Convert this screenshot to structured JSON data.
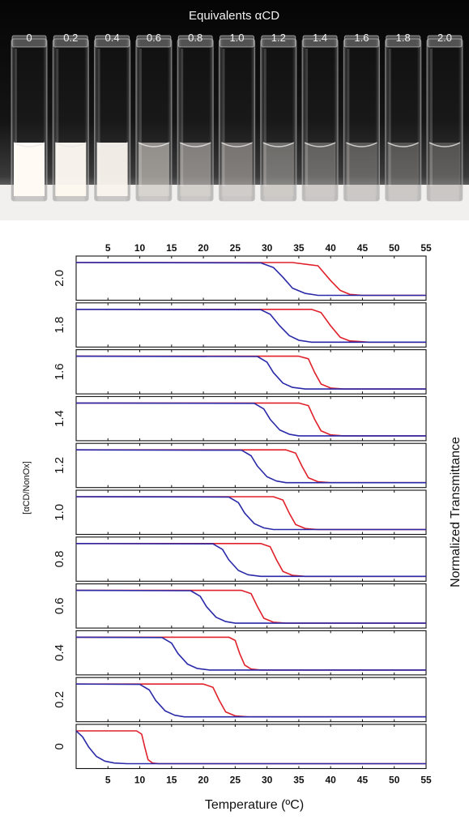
{
  "photo": {
    "title": "Equivalents αCD",
    "vial_labels": [
      "0",
      "0.2",
      "0.4",
      "0.6",
      "0.8",
      "1.0",
      "1.2",
      "1.4",
      "1.6",
      "1.8",
      "2.0"
    ],
    "turbidity": [
      1.0,
      0.96,
      0.93,
      0.45,
      0.35,
      0.28,
      0.22,
      0.15,
      0.1,
      0.07,
      0.05
    ]
  },
  "chart_data": {
    "type": "line",
    "xlabel": "Temperature (ºC)",
    "ylabel_left": "[αCD/NonOx]",
    "ylabel_right": "Normalized Transmittance",
    "xlim": [
      0,
      55
    ],
    "xticks": [
      5,
      10,
      15,
      20,
      25,
      30,
      35,
      40,
      45,
      50,
      55
    ],
    "panel_order": [
      "2.0",
      "1.8",
      "1.6",
      "1.4",
      "1.2",
      "1.0",
      "0.8",
      "0.6",
      "0.4",
      "0.2",
      "0"
    ],
    "series_colors": {
      "red": "#e0202a",
      "blue": "#2a2aa8"
    },
    "panels": [
      {
        "label": "2.0",
        "red": [
          [
            0,
            1
          ],
          [
            34,
            1
          ],
          [
            38,
            0.9
          ],
          [
            40,
            0.45
          ],
          [
            41.5,
            0.15
          ],
          [
            43,
            0.03
          ],
          [
            45,
            0
          ],
          [
            55,
            0
          ]
        ],
        "blue": [
          [
            0,
            1
          ],
          [
            29,
            0.99
          ],
          [
            31,
            0.85
          ],
          [
            32.5,
            0.55
          ],
          [
            34,
            0.22
          ],
          [
            36,
            0.06
          ],
          [
            38,
            0
          ],
          [
            55,
            0
          ]
        ]
      },
      {
        "label": "1.8",
        "red": [
          [
            0,
            1
          ],
          [
            37,
            1
          ],
          [
            38.5,
            0.9
          ],
          [
            40,
            0.5
          ],
          [
            41.5,
            0.15
          ],
          [
            43,
            0.04
          ],
          [
            46,
            0
          ],
          [
            55,
            0
          ]
        ],
        "blue": [
          [
            0,
            1
          ],
          [
            29,
            0.99
          ],
          [
            30.5,
            0.85
          ],
          [
            32,
            0.5
          ],
          [
            33.5,
            0.2
          ],
          [
            35,
            0.06
          ],
          [
            37,
            0
          ],
          [
            55,
            0
          ]
        ]
      },
      {
        "label": "1.6",
        "red": [
          [
            0,
            1
          ],
          [
            35,
            1
          ],
          [
            36.5,
            0.92
          ],
          [
            37.5,
            0.5
          ],
          [
            38.5,
            0.15
          ],
          [
            40,
            0.03
          ],
          [
            42,
            0
          ],
          [
            55,
            0
          ]
        ],
        "blue": [
          [
            0,
            1
          ],
          [
            28.5,
            0.99
          ],
          [
            30,
            0.82
          ],
          [
            31,
            0.5
          ],
          [
            32.5,
            0.18
          ],
          [
            34,
            0.05
          ],
          [
            36,
            0
          ],
          [
            55,
            0
          ]
        ]
      },
      {
        "label": "1.4",
        "red": [
          [
            0,
            1
          ],
          [
            35,
            1
          ],
          [
            36.5,
            0.92
          ],
          [
            37.5,
            0.5
          ],
          [
            38.5,
            0.15
          ],
          [
            40,
            0.03
          ],
          [
            42,
            0
          ],
          [
            55,
            0
          ]
        ],
        "blue": [
          [
            0,
            1
          ],
          [
            28,
            0.99
          ],
          [
            29.5,
            0.82
          ],
          [
            30.5,
            0.5
          ],
          [
            32,
            0.18
          ],
          [
            33.5,
            0.05
          ],
          [
            35,
            0
          ],
          [
            55,
            0
          ]
        ]
      },
      {
        "label": "1.2",
        "red": [
          [
            0,
            1
          ],
          [
            33,
            1
          ],
          [
            34.5,
            0.9
          ],
          [
            35.5,
            0.5
          ],
          [
            36.5,
            0.15
          ],
          [
            38,
            0.03
          ],
          [
            40,
            0
          ],
          [
            55,
            0
          ]
        ],
        "blue": [
          [
            0,
            1
          ],
          [
            26,
            0.99
          ],
          [
            27.5,
            0.82
          ],
          [
            28.5,
            0.5
          ],
          [
            30,
            0.18
          ],
          [
            31.5,
            0.05
          ],
          [
            33,
            0
          ],
          [
            55,
            0
          ]
        ]
      },
      {
        "label": "1.0",
        "red": [
          [
            0,
            1
          ],
          [
            31,
            1
          ],
          [
            32.5,
            0.9
          ],
          [
            33.5,
            0.5
          ],
          [
            34.5,
            0.15
          ],
          [
            36,
            0.03
          ],
          [
            38,
            0
          ],
          [
            55,
            0
          ]
        ],
        "blue": [
          [
            0,
            1
          ],
          [
            24,
            0.99
          ],
          [
            25.5,
            0.82
          ],
          [
            26.5,
            0.5
          ],
          [
            28,
            0.18
          ],
          [
            29.5,
            0.05
          ],
          [
            31,
            0
          ],
          [
            55,
            0
          ]
        ]
      },
      {
        "label": "0.8",
        "red": [
          [
            0,
            1
          ],
          [
            29,
            1
          ],
          [
            30.5,
            0.9
          ],
          [
            31.5,
            0.5
          ],
          [
            32.5,
            0.15
          ],
          [
            34,
            0.03
          ],
          [
            36,
            0
          ],
          [
            55,
            0
          ]
        ],
        "blue": [
          [
            0,
            1
          ],
          [
            21.5,
            0.99
          ],
          [
            23,
            0.82
          ],
          [
            24,
            0.5
          ],
          [
            25.5,
            0.18
          ],
          [
            27,
            0.05
          ],
          [
            29,
            0
          ],
          [
            55,
            0
          ]
        ]
      },
      {
        "label": "0.6",
        "red": [
          [
            0,
            1
          ],
          [
            26,
            1
          ],
          [
            27.5,
            0.9
          ],
          [
            28.5,
            0.5
          ],
          [
            29.5,
            0.15
          ],
          [
            31,
            0.03
          ],
          [
            33,
            0
          ],
          [
            55,
            0
          ]
        ],
        "blue": [
          [
            0,
            1
          ],
          [
            18,
            0.99
          ],
          [
            19.5,
            0.82
          ],
          [
            20.5,
            0.5
          ],
          [
            22,
            0.18
          ],
          [
            23.5,
            0.05
          ],
          [
            25,
            0
          ],
          [
            55,
            0
          ]
        ]
      },
      {
        "label": "0.4",
        "red": [
          [
            0,
            1
          ],
          [
            24,
            1
          ],
          [
            25,
            0.9
          ],
          [
            25.7,
            0.5
          ],
          [
            26.5,
            0.15
          ],
          [
            27.5,
            0.03
          ],
          [
            29,
            0
          ],
          [
            55,
            0
          ]
        ],
        "blue": [
          [
            0,
            1
          ],
          [
            13.5,
            0.99
          ],
          [
            15,
            0.82
          ],
          [
            16,
            0.5
          ],
          [
            17.5,
            0.18
          ],
          [
            19,
            0.05
          ],
          [
            21,
            0
          ],
          [
            55,
            0
          ]
        ]
      },
      {
        "label": "0.2",
        "red": [
          [
            0,
            1
          ],
          [
            20,
            1
          ],
          [
            21.5,
            0.9
          ],
          [
            22.5,
            0.5
          ],
          [
            23.5,
            0.15
          ],
          [
            25,
            0.03
          ],
          [
            27,
            0
          ],
          [
            55,
            0
          ]
        ],
        "blue": [
          [
            0,
            1
          ],
          [
            10,
            0.99
          ],
          [
            11.5,
            0.82
          ],
          [
            12.5,
            0.5
          ],
          [
            14,
            0.18
          ],
          [
            15.5,
            0.05
          ],
          [
            17,
            0
          ],
          [
            55,
            0
          ]
        ]
      },
      {
        "label": "0",
        "red": [
          [
            0,
            1
          ],
          [
            9.5,
            1
          ],
          [
            10.3,
            0.9
          ],
          [
            10.8,
            0.5
          ],
          [
            11.3,
            0.12
          ],
          [
            12,
            0.02
          ],
          [
            13,
            0
          ],
          [
            55,
            0
          ]
        ],
        "blue": [
          [
            0,
            1
          ],
          [
            1,
            0.82
          ],
          [
            2,
            0.5
          ],
          [
            3.2,
            0.22
          ],
          [
            4.5,
            0.08
          ],
          [
            6,
            0.02
          ],
          [
            8,
            0
          ],
          [
            55,
            0
          ]
        ]
      }
    ]
  }
}
